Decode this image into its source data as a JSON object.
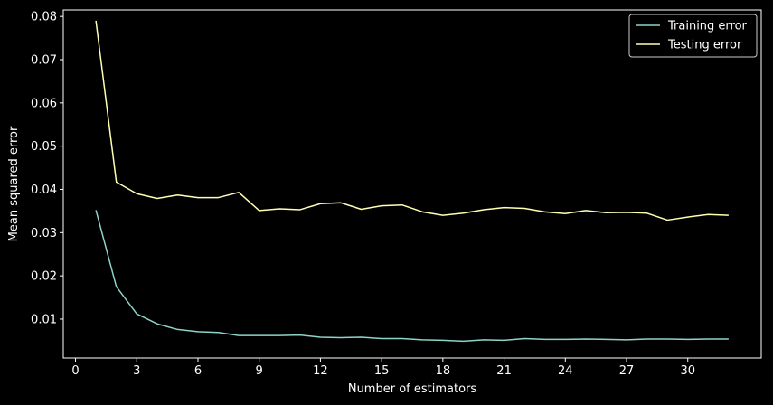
{
  "chart_data": {
    "type": "line",
    "xlabel": "Number of estimators",
    "ylabel": "Mean squared error",
    "xlim": [
      -0.6,
      33.6
    ],
    "ylim": [
      0.001,
      0.0815
    ],
    "xticks": [
      0,
      3,
      6,
      9,
      12,
      15,
      18,
      21,
      24,
      27,
      30
    ],
    "xtick_labels": [
      "0",
      "3",
      "6",
      "9",
      "12",
      "15",
      "18",
      "21",
      "24",
      "27",
      "30"
    ],
    "yticks": [
      0.01,
      0.02,
      0.03,
      0.04,
      0.05,
      0.06,
      0.07,
      0.08
    ],
    "ytick_labels": [
      "0.01",
      "0.02",
      "0.03",
      "0.04",
      "0.05",
      "0.06",
      "0.07",
      "0.08"
    ],
    "grid": false,
    "legend_position": "top-right",
    "background": "#000000",
    "x": [
      1,
      2,
      3,
      4,
      5,
      6,
      7,
      8,
      9,
      10,
      11,
      12,
      13,
      14,
      15,
      16,
      17,
      18,
      19,
      20,
      21,
      22,
      23,
      24,
      25,
      26,
      27,
      28,
      29,
      30,
      31,
      32
    ],
    "series": [
      {
        "name": "Training error",
        "color": "#8dd3c7",
        "values": [
          0.0352,
          0.0175,
          0.0112,
          0.0089,
          0.0076,
          0.0071,
          0.0069,
          0.0062,
          0.0062,
          0.0062,
          0.0063,
          0.0058,
          0.0057,
          0.0058,
          0.0055,
          0.0055,
          0.0052,
          0.0051,
          0.0049,
          0.0052,
          0.0051,
          0.0055,
          0.0053,
          0.0053,
          0.0054,
          0.0053,
          0.0052,
          0.0054,
          0.0054,
          0.0053,
          0.0054,
          0.0054
        ]
      },
      {
        "name": "Testing error",
        "color": "#ffffb3",
        "values": [
          0.079,
          0.0417,
          0.039,
          0.0379,
          0.0387,
          0.0381,
          0.0381,
          0.0393,
          0.0351,
          0.0355,
          0.0353,
          0.0367,
          0.0369,
          0.0354,
          0.0362,
          0.0364,
          0.0348,
          0.034,
          0.0345,
          0.0353,
          0.0358,
          0.0356,
          0.0348,
          0.0344,
          0.0351,
          0.0346,
          0.0347,
          0.0345,
          0.0329,
          0.0336,
          0.0342,
          0.034
        ]
      }
    ]
  }
}
